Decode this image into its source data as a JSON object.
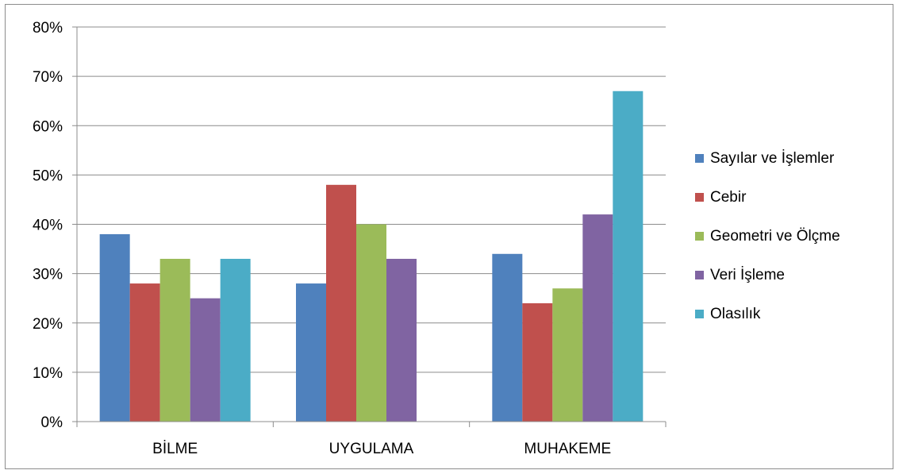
{
  "chart_data": {
    "type": "bar",
    "title": "",
    "xlabel": "",
    "ylabel": "",
    "categories": [
      "BİLME",
      "UYGULAMA",
      "MUHAKEME"
    ],
    "ylim": [
      0,
      80
    ],
    "yticks": [
      "0%",
      "10%",
      "20%",
      "30%",
      "40%",
      "50%",
      "60%",
      "70%",
      "80%"
    ],
    "grid": true,
    "legend_position": "right",
    "series": [
      {
        "name": "Sayılar ve İşlemler",
        "color": "#4F81BD",
        "values": [
          38,
          28,
          34
        ]
      },
      {
        "name": "Cebir",
        "color": "#C0504D",
        "values": [
          28,
          48,
          24
        ]
      },
      {
        "name": "Geometri ve Ölçme",
        "color": "#9BBB59",
        "values": [
          33,
          40,
          27
        ]
      },
      {
        "name": "Veri İşleme",
        "color": "#8064A2",
        "values": [
          25,
          33,
          42
        ]
      },
      {
        "name": "Olasılık",
        "color": "#4BACC6",
        "values": [
          33,
          null,
          67
        ]
      }
    ]
  }
}
